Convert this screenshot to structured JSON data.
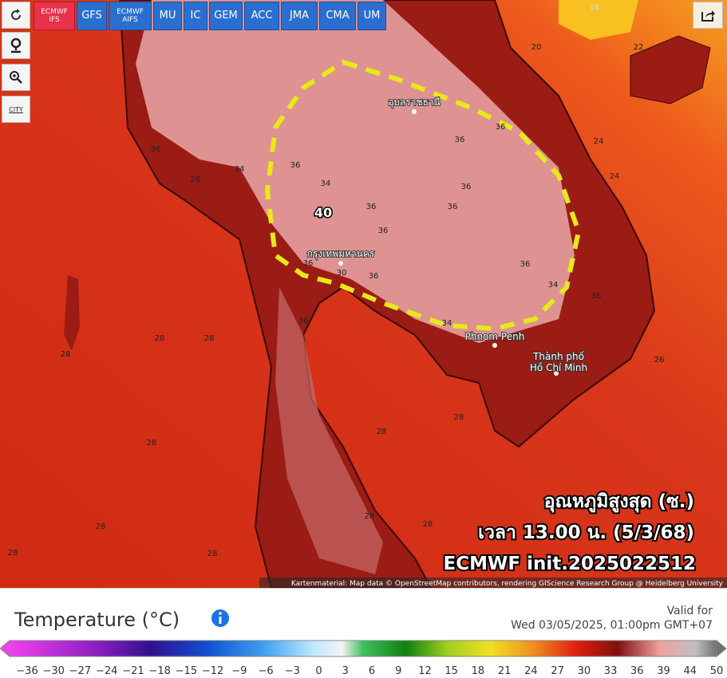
{
  "toolbar": {
    "models": [
      "ECMWF IFS",
      "GFS",
      "ECMWF AIFS",
      "MU",
      "IC",
      "GEM",
      "ACC",
      "JMA",
      "CMA",
      "UM"
    ],
    "city_button": "CITY"
  },
  "map": {
    "contour_labels": [
      "36",
      "28",
      "34",
      "40",
      "36",
      "34",
      "36",
      "36",
      "36",
      "36",
      "36",
      "36",
      "36",
      "34",
      "36",
      "24",
      "24",
      "20",
      "22",
      "26",
      "36",
      "30",
      "36",
      "34",
      "28",
      "28",
      "28",
      "28",
      "36",
      "28",
      "28",
      "28",
      "28",
      "28",
      "28",
      "28",
      "18"
    ],
    "places": [
      "อุบลราชธานี",
      "กรุงเทพมหานคร",
      "Phnom Penh",
      "Thành phố",
      "Hồ Chí Minh"
    ],
    "overlay": [
      "อุณหภูมิสูงสุด (ซ.)",
      "เวลา 13.00 น. (5/3/68)",
      "ECMWF init.2025022512"
    ],
    "attribution": "Kartenmaterial: Map data © OpenStreetMap contributors, rendering GIScience Research Group @ Heidelberg University"
  },
  "legend": {
    "title": "Temperature (°C)",
    "valid_label": "Valid for",
    "valid_time": "Wed 03/05/2025, 01:00pm GMT+07",
    "ticks": [
      "−36",
      "−30",
      "−27",
      "−24",
      "−21",
      "−18",
      "−15",
      "−12",
      "−9",
      "−6",
      "−3",
      "0",
      "3",
      "6",
      "9",
      "12",
      "15",
      "18",
      "21",
      "24",
      "27",
      "30",
      "33",
      "36",
      "39",
      "44",
      "50"
    ]
  }
}
